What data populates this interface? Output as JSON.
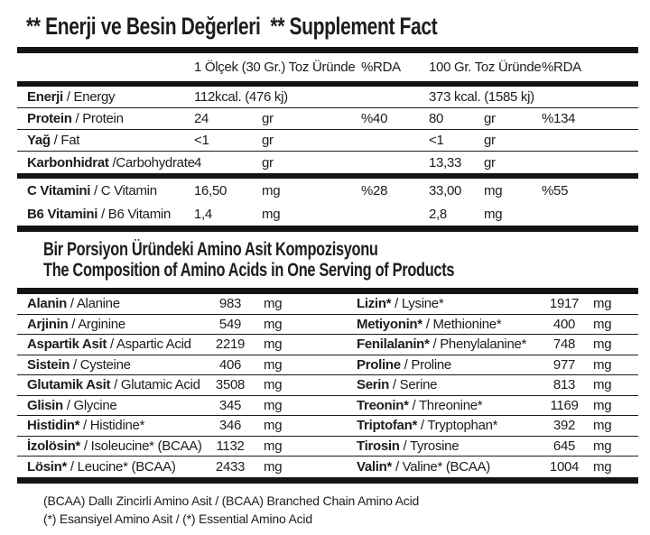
{
  "title": "** Enerji ve Besin Değerleri  ** Supplement Fact",
  "colors": {
    "ink": "#1e1c1d",
    "bar": "#151314",
    "bg": "#ffffff"
  },
  "header": {
    "col_serving": "1 Ölçek (30 Gr.) Toz Üründe",
    "rda_serving": "%RDA",
    "col_100g": "100 Gr. Toz Üründe",
    "rda_100g": "%RDA"
  },
  "nutrition_rows": [
    {
      "tr": "Enerji",
      "en": "/ Energy",
      "v1": "112kcal. (476 kj)",
      "u1": "",
      "rda1": "",
      "v2": "373 kcal. (1585 kj)",
      "u2": "",
      "rda2": ""
    },
    {
      "tr": "Protein",
      "en": "/ Protein",
      "v1": "24",
      "u1": "gr",
      "rda1": "%40",
      "v2": "80",
      "u2": "gr",
      "rda2": "%134"
    },
    {
      "tr": "Yağ",
      "en": "/ Fat",
      "v1": "<1",
      "u1": "gr",
      "rda1": "",
      "v2": "<1",
      "u2": "gr",
      "rda2": ""
    },
    {
      "tr": "Karbonhidrat",
      "en": "/Carbohydrate",
      "v1": "4",
      "u1": "gr",
      "rda1": "",
      "v2": "13,33",
      "u2": "gr",
      "rda2": ""
    }
  ],
  "vitamin_rows": [
    {
      "tr": "C Vitamini",
      "en": "/ C Vitamin",
      "v1": "16,50",
      "u1": "mg",
      "rda1": "%28",
      "v2": "33,00",
      "u2": "mg",
      "rda2": "%55"
    },
    {
      "tr": "B6 Vitamini",
      "en": "/ B6 Vitamin",
      "v1": "1,4",
      "u1": "mg",
      "rda1": "",
      "v2": "2,8",
      "u2": "mg",
      "rda2": ""
    }
  ],
  "amino_section": {
    "heading_tr": "Bir Porsiyon Üründeki Amino Asit Kompozisyonu",
    "heading_en": "The Composition of Amino Acids in One Serving of Products",
    "rows": [
      {
        "l_tr": "Alanin",
        "l_en": "/ Alanine",
        "l_v": "983",
        "l_u": "mg",
        "r_tr": "Lizin*",
        "r_en": "/ Lysine*",
        "r_v": "1917",
        "r_u": "mg"
      },
      {
        "l_tr": "Arjinin",
        "l_en": "/ Arginine",
        "l_v": "549",
        "l_u": "mg",
        "r_tr": "Metiyonin*",
        "r_en": "/ Methionine*",
        "r_v": "400",
        "r_u": "mg"
      },
      {
        "l_tr": "Aspartik Asit",
        "l_en": "/ Aspartic Acid",
        "l_v": "2219",
        "l_u": "mg",
        "r_tr": "Fenilalanin*",
        "r_en": "/ Phenylalanine*",
        "r_v": "748",
        "r_u": "mg"
      },
      {
        "l_tr": "Sistein",
        "l_en": "/ Cysteine",
        "l_v": "406",
        "l_u": "mg",
        "r_tr": "Proline",
        "r_en": "/ Proline",
        "r_v": "977",
        "r_u": "mg"
      },
      {
        "l_tr": "Glutamik Asit",
        "l_en": "/ Glutamic Acid",
        "l_v": "3508",
        "l_u": "mg",
        "r_tr": "Serin",
        "r_en": "/ Serine",
        "r_v": "813",
        "r_u": "mg"
      },
      {
        "l_tr": "Glisin",
        "l_en": "/ Glycine",
        "l_v": "345",
        "l_u": "mg",
        "r_tr": "Treonin*",
        "r_en": "/ Threonine*",
        "r_v": "1169",
        "r_u": "mg"
      },
      {
        "l_tr": "Histidin*",
        "l_en": "/ Histidine*",
        "l_v": "346",
        "l_u": "mg",
        "r_tr": "Triptofan*",
        "r_en": "/ Tryptophan*",
        "r_v": "392",
        "r_u": "mg"
      },
      {
        "l_tr": "İzolösin*",
        "l_en": "/ Isoleucine* (BCAA)",
        "l_v": "1132",
        "l_u": "mg",
        "r_tr": "Tirosin",
        "r_en": "/ Tyrosine",
        "r_v": "645",
        "r_u": "mg"
      },
      {
        "l_tr": "Lösin*",
        "l_en": "/ Leucine* (BCAA)",
        "l_v": "2433",
        "l_u": "mg",
        "r_tr": "Valin*",
        "r_en": "/ Valine* (BCAA)",
        "r_v": "1004",
        "r_u": "mg"
      }
    ]
  },
  "footnotes": [
    "(BCAA) Dallı Zincirli Amino Asit / (BCAA) Branched Chain Amino Acid",
    "(*) Esansiyel Amino Asit / (*) Essential Amino Acid"
  ]
}
